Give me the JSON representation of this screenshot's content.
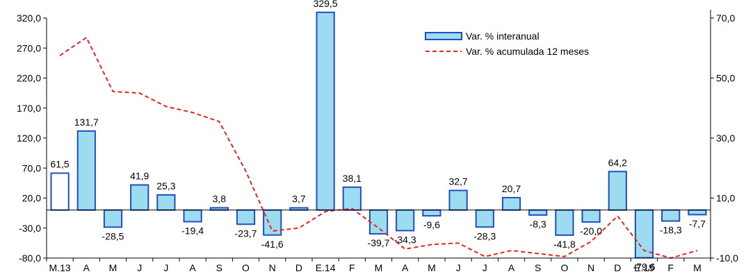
{
  "chart_data": {
    "type": "bar",
    "categories": [
      "M.13",
      "A",
      "M",
      "J",
      "J",
      "A",
      "S",
      "O",
      "N",
      "D",
      "E.14",
      "F",
      "M",
      "A",
      "M",
      "J",
      "J",
      "A",
      "S",
      "O",
      "N",
      "D",
      "E.15",
      "F",
      "M"
    ],
    "series": [
      {
        "name": "Var. % interanual",
        "type": "bar",
        "axis": "left",
        "values": [
          61.5,
          131.7,
          -28.5,
          41.9,
          25.3,
          -19.4,
          3.8,
          -23.7,
          -41.6,
          3.7,
          329.5,
          38.1,
          -39.7,
          -34.3,
          -9.6,
          32.7,
          -28.3,
          20.7,
          -8.3,
          -41.8,
          -20.0,
          64.2,
          -79.6,
          -18.3,
          -7.7
        ],
        "labels": [
          "61,5",
          "131,7",
          "-28,5",
          "41,9",
          "25,3",
          "-19,4",
          "3,8",
          "-23,7",
          "-41,6",
          "3,7",
          "329,5",
          "38,1",
          "-39,7",
          "-34,3",
          "-9,6",
          "32,7",
          "-28,3",
          "20,7",
          "-8,3",
          "-41,8",
          "-20,0",
          "64,2",
          "-79,6",
          "-18,3",
          "-7,7"
        ],
        "fill": "#9ddcf0",
        "first_fill": "#ffffff",
        "stroke": "#1f4fbf"
      },
      {
        "name": "Var. % acumulada 12 meses",
        "type": "line",
        "axis": "right",
        "values": [
          57.5,
          63.5,
          45.5,
          45.0,
          40.5,
          38.5,
          35.5,
          19.0,
          -1.0,
          0.0,
          5.5,
          6.5,
          0.0,
          -7.0,
          -5.5,
          -5.0,
          -9.5,
          -7.5,
          -8.5,
          -9.5,
          -4.5,
          4.0,
          -7.5,
          -10.0,
          -7.5
        ],
        "color": "#e82020"
      }
    ],
    "left_axis": {
      "min": -80,
      "max": 320,
      "step": 50,
      "ticks": [
        "-80,0",
        "-30,0",
        "20,0",
        "70,0",
        "120,0",
        "170,0",
        "220,0",
        "270,0",
        "320,0"
      ]
    },
    "right_axis": {
      "min": -10,
      "max": 70,
      "step": 20,
      "ticks": [
        "-10,0",
        "10,0",
        "30,0",
        "50,0",
        "70,0"
      ]
    },
    "baseline": 0,
    "grid": false,
    "legend_position": "top-right"
  }
}
